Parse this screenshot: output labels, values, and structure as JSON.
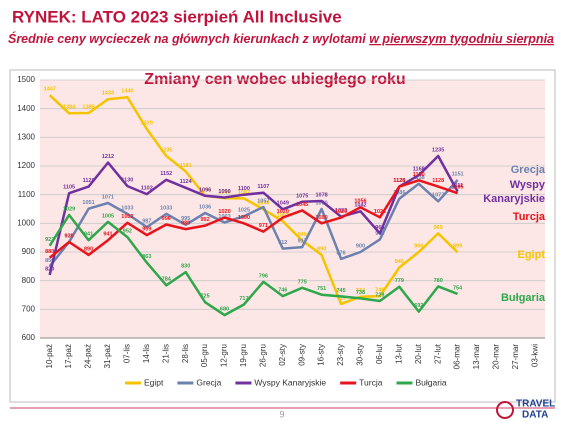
{
  "chart_data": {
    "type": "line",
    "title": "RYNEK: LATO 2023 sierpień All Inclusive",
    "subtitle_parts": [
      {
        "text": "Średnie ceny wycieczek na głównych kierunkach z wylotami ",
        "underline": false
      },
      {
        "text": "w pierwszym tygodniu sierpnia",
        "underline": true
      }
    ],
    "chart_title": "Zmiany cen wobec ubiegłego roku",
    "page_number": "9",
    "logo": [
      "TRAVEL",
      "DATA"
    ],
    "categories": [
      "10-paź",
      "17-paź",
      "24-paź",
      "31-paź",
      "07-lis",
      "14-lis",
      "21-lis",
      "28-lis",
      "05-gru",
      "12-gru",
      "19-gru",
      "26-gru",
      "02-sty",
      "09-sty",
      "16-sty",
      "23-sty",
      "30-sty",
      "06-lut",
      "13-lut",
      "20-lut",
      "27-lut",
      "06-mar",
      "13-mar",
      "20-mar",
      "27-mar",
      "03-kwi"
    ],
    "ylim": [
      600,
      1500
    ],
    "yticks": [
      600,
      700,
      800,
      900,
      1000,
      1100,
      1200,
      1300,
      1400,
      1500
    ],
    "grid": true,
    "legend": "bottom",
    "series": [
      {
        "name": "Egipt",
        "color": "#f5c400",
        "values": [
          1447,
          1384,
          1385,
          1433,
          1440,
          1329,
          1235,
          1181,
          1096,
          1088,
          1087,
          1049,
          1007,
          940,
          890,
          719,
          744,
          746,
          846,
          900,
          965,
          899,
          null,
          null,
          null,
          null
        ]
      },
      {
        "name": "Grecja",
        "color": "#6b82b0",
        "values": [
          850,
          935,
          1051,
          1071,
          1033,
          987,
          1033,
          995,
          1036,
          1003,
          1025,
          1057,
          912,
          917,
          1050,
          876,
          900,
          944,
          1086,
          1138,
          1077,
          1151,
          null,
          null,
          null,
          null
        ]
      },
      {
        "name": "Wyspy Kanaryjskie",
        "color": "#7030a0",
        "values": [
          820,
          1105,
          1128,
          1212,
          1130,
          1102,
          1152,
          1124,
          1096,
          1090,
          1100,
          1107,
          1049,
          1075,
          1078,
          1023,
          1042,
          965,
          1128,
          1168,
          1235,
          1111,
          null,
          null,
          null,
          null
        ]
      },
      {
        "name": "Turcja",
        "color": "#e8141c",
        "values": [
          880,
          935,
          890,
          941,
          1002,
          959,
          996,
          980,
          992,
          1020,
          1000,
          971,
          1020,
          1045,
          1000,
          1020,
          1056,
          1021,
          1128,
          1150,
          1128,
          1105,
          null,
          null,
          null,
          null
        ]
      },
      {
        "name": "Bułgaria",
        "color": "#2ea84a",
        "values": [
          922,
          1029,
          941,
          1005,
          952,
          863,
          784,
          830,
          725,
          680,
          717,
          796,
          746,
          775,
          751,
          745,
          738,
          729,
          779,
          692,
          780,
          754,
          null,
          null,
          null,
          null
        ]
      }
    ]
  }
}
